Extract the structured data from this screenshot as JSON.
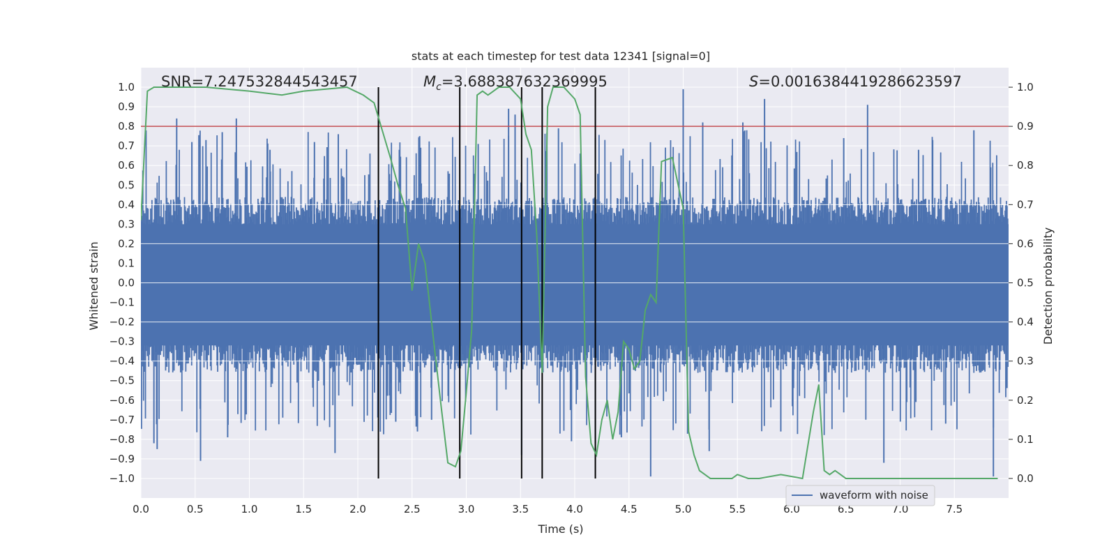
{
  "chart_data": {
    "type": "line",
    "title": "stats at each timestep for test data 12341 [signal=0]",
    "xlabel": "Time (s)",
    "ylabel": "Whitened strain",
    "y2label": "Detection probability",
    "xlim": [
      0.0,
      8.0
    ],
    "ylim": [
      -1.1,
      1.1
    ],
    "y2lim": [
      -0.05,
      1.05
    ],
    "xticks": [
      "0.0",
      "0.5",
      "1.0",
      "1.5",
      "2.0",
      "2.5",
      "3.0",
      "3.5",
      "4.0",
      "4.5",
      "5.0",
      "5.5",
      "6.0",
      "6.5",
      "7.0",
      "7.5"
    ],
    "yticks": [
      "1.0",
      "0.9",
      "0.8",
      "0.7",
      "0.6",
      "0.5",
      "0.4",
      "0.3",
      "0.2",
      "0.1",
      "0.0",
      "−0.1",
      "−0.2",
      "−0.3",
      "−0.4",
      "−0.5",
      "−0.6",
      "−0.7",
      "−0.8",
      "−0.9",
      "−1.0"
    ],
    "y2ticks": [
      "1.0",
      "0.9",
      "0.8",
      "0.7",
      "0.6",
      "0.5",
      "0.4",
      "0.3",
      "0.2",
      "0.1",
      "0.0"
    ],
    "annotations": {
      "snr": "SNR=7.247532844543457",
      "mc_symbol": "M",
      "mc_subscript": "c",
      "mc_value": "=3.688387632369995",
      "s_symbol": "S",
      "s_value": "=0.0016384419286623597"
    },
    "threshold": {
      "value": 0.8,
      "color": "#c44e52"
    },
    "vertical_lines": [
      2.19,
      2.94,
      3.51,
      3.7,
      4.19
    ],
    "vertical_line_range": [
      -1.0,
      1.0
    ],
    "legend": {
      "label": "waveform with noise",
      "position": "lower-right"
    },
    "series": [
      {
        "name": "waveform with noise",
        "color": "#4c72b0",
        "envelope_base": 0.4,
        "peaks_upper": [
          [
            0.33,
            0.84
          ],
          [
            0.88,
            0.84
          ],
          [
            0.47,
            0.72
          ],
          [
            0.6,
            0.73
          ],
          [
            0.75,
            0.77
          ],
          [
            1.19,
            0.68
          ],
          [
            1.82,
            0.76
          ],
          [
            1.6,
            0.72
          ],
          [
            2.57,
            0.75
          ],
          [
            3.11,
            0.71
          ],
          [
            3.39,
            0.89
          ],
          [
            3.45,
            0.86
          ],
          [
            3.85,
            0.79
          ],
          [
            4.19,
            0.74
          ],
          [
            5.0,
            0.99
          ],
          [
            5.18,
            0.82
          ],
          [
            5.55,
            0.82
          ],
          [
            5.75,
            0.94
          ],
          [
            6.48,
            0.74
          ],
          [
            6.7,
            0.91
          ],
          [
            7.17,
            0.68
          ],
          [
            7.68,
            0.78
          ],
          [
            7.3,
            0.73
          ]
        ],
        "peaks_lower": [
          [
            0.12,
            -0.82
          ],
          [
            0.15,
            -0.85
          ],
          [
            0.55,
            -0.91
          ],
          [
            0.8,
            -0.79
          ],
          [
            1.79,
            -0.87
          ],
          [
            2.35,
            -0.71
          ],
          [
            2.55,
            -0.76
          ],
          [
            2.68,
            -0.7
          ],
          [
            3.51,
            -0.88
          ],
          [
            3.97,
            -0.81
          ],
          [
            4.19,
            -0.82
          ],
          [
            4.43,
            -0.79
          ],
          [
            4.7,
            -0.99
          ],
          [
            5.24,
            -0.86
          ],
          [
            5.9,
            -0.76
          ],
          [
            6.85,
            -0.92
          ],
          [
            7.86,
            -0.99
          ],
          [
            7.42,
            -0.72
          ]
        ]
      },
      {
        "name": "detection probability",
        "color": "#55a868",
        "x": [
          0.0,
          0.06,
          0.12,
          0.3,
          0.6,
          1.0,
          1.3,
          1.5,
          1.9,
          2.05,
          2.15,
          2.3,
          2.37,
          2.44,
          2.5,
          2.56,
          2.62,
          2.7,
          2.77,
          2.83,
          2.9,
          2.95,
          3.0,
          3.05,
          3.1,
          3.15,
          3.2,
          3.25,
          3.3,
          3.4,
          3.5,
          3.55,
          3.6,
          3.65,
          3.7,
          3.75,
          3.8,
          3.9,
          4.0,
          4.05,
          4.1,
          4.15,
          4.2,
          4.25,
          4.3,
          4.35,
          4.4,
          4.45,
          4.5,
          4.55,
          4.6,
          4.65,
          4.7,
          4.75,
          4.8,
          4.9,
          5.0,
          5.05,
          5.1,
          5.15,
          5.2,
          5.25,
          5.3,
          5.35,
          5.4,
          5.45,
          5.5,
          5.6,
          5.7,
          5.9,
          6.1,
          6.2,
          6.25,
          6.3,
          6.35,
          6.4,
          6.45,
          6.5,
          6.55,
          6.6,
          6.65,
          6.7,
          6.75,
          6.8,
          6.9,
          7.0,
          7.5,
          7.9
        ],
        "y": [
          0.66,
          0.99,
          1.0,
          1.0,
          1.0,
          0.99,
          0.98,
          0.99,
          1.0,
          0.98,
          0.96,
          0.82,
          0.75,
          0.69,
          0.48,
          0.6,
          0.55,
          0.35,
          0.18,
          0.04,
          0.03,
          0.07,
          0.22,
          0.38,
          0.98,
          0.99,
          0.98,
          0.99,
          1.0,
          1.0,
          0.97,
          0.88,
          0.84,
          0.62,
          0.27,
          0.95,
          1.0,
          1.0,
          0.97,
          0.93,
          0.26,
          0.09,
          0.06,
          0.15,
          0.2,
          0.1,
          0.17,
          0.35,
          0.33,
          0.28,
          0.3,
          0.43,
          0.47,
          0.45,
          0.81,
          0.82,
          0.69,
          0.12,
          0.06,
          0.02,
          0.01,
          0.0,
          0.0,
          0.0,
          0.0,
          0.0,
          0.01,
          0.0,
          0.0,
          0.01,
          0.0,
          0.17,
          0.24,
          0.02,
          0.01,
          0.02,
          0.01,
          0.0,
          0.0,
          0.0,
          0.0,
          0.0,
          0.0,
          0.0,
          0.0,
          0.0,
          0.0,
          0.0
        ]
      }
    ]
  }
}
